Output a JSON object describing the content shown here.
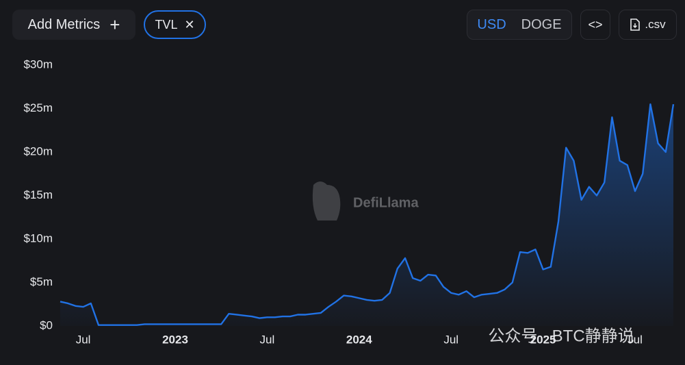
{
  "toolbar": {
    "add_metrics": "Add Metrics",
    "currencies": [
      "USD",
      "DOGE"
    ],
    "csv": ".csv"
  },
  "watermarks": {
    "brand": "DefiLlama",
    "channel": "公众号 · BTC静静说"
  },
  "chart_data": {
    "type": "line",
    "categories": [
      null,
      null,
      null,
      "Jul",
      null,
      null,
      null,
      null,
      null,
      null,
      null,
      null,
      null,
      null,
      null,
      "2023",
      null,
      null,
      null,
      null,
      null,
      null,
      null,
      null,
      null,
      null,
      null,
      "Jul",
      null,
      null,
      null,
      null,
      null,
      null,
      null,
      null,
      null,
      null,
      null,
      "2024",
      null,
      null,
      null,
      null,
      null,
      null,
      null,
      null,
      null,
      null,
      null,
      "Jul",
      null,
      null,
      null,
      null,
      null,
      null,
      null,
      null,
      null,
      null,
      null,
      "2025",
      null,
      null,
      null,
      null,
      null,
      null,
      null,
      null,
      null,
      null,
      null,
      "Jul",
      null,
      null,
      null,
      null,
      null
    ],
    "series": [
      {
        "name": "TVL",
        "color": "#2172e5",
        "values": [
          2.8,
          2.6,
          2.3,
          2.2,
          2.6,
          0.1,
          0.1,
          0.1,
          0.1,
          0.1,
          0.1,
          0.2,
          0.2,
          0.2,
          0.2,
          0.2,
          0.2,
          0.2,
          0.2,
          0.2,
          0.2,
          0.2,
          1.4,
          1.3,
          1.2,
          1.1,
          0.9,
          1.0,
          1.0,
          1.1,
          1.1,
          1.3,
          1.3,
          1.4,
          1.5,
          2.2,
          2.8,
          3.5,
          3.4,
          3.2,
          3.0,
          2.9,
          3.0,
          3.8,
          6.6,
          7.8,
          5.5,
          5.2,
          5.9,
          5.8,
          4.5,
          3.8,
          3.6,
          4.0,
          3.3,
          3.6,
          3.7,
          3.8,
          4.2,
          5.0,
          8.5,
          8.4,
          8.8,
          6.5,
          6.8,
          12,
          20.5,
          19,
          14.5,
          16,
          15,
          16.5,
          24,
          19,
          18.5,
          15.5,
          17.5,
          25.5,
          21,
          20,
          25.5
        ]
      }
    ],
    "ylim": [
      0,
      30
    ],
    "yticks": [
      {
        "value": 0,
        "label": "$0"
      },
      {
        "value": 5,
        "label": "$5m"
      },
      {
        "value": 10,
        "label": "$10m"
      },
      {
        "value": 15,
        "label": "$15m"
      },
      {
        "value": 20,
        "label": "$20m"
      },
      {
        "value": 25,
        "label": "$25m"
      },
      {
        "value": 30,
        "label": "$30m"
      }
    ],
    "grid": false
  }
}
